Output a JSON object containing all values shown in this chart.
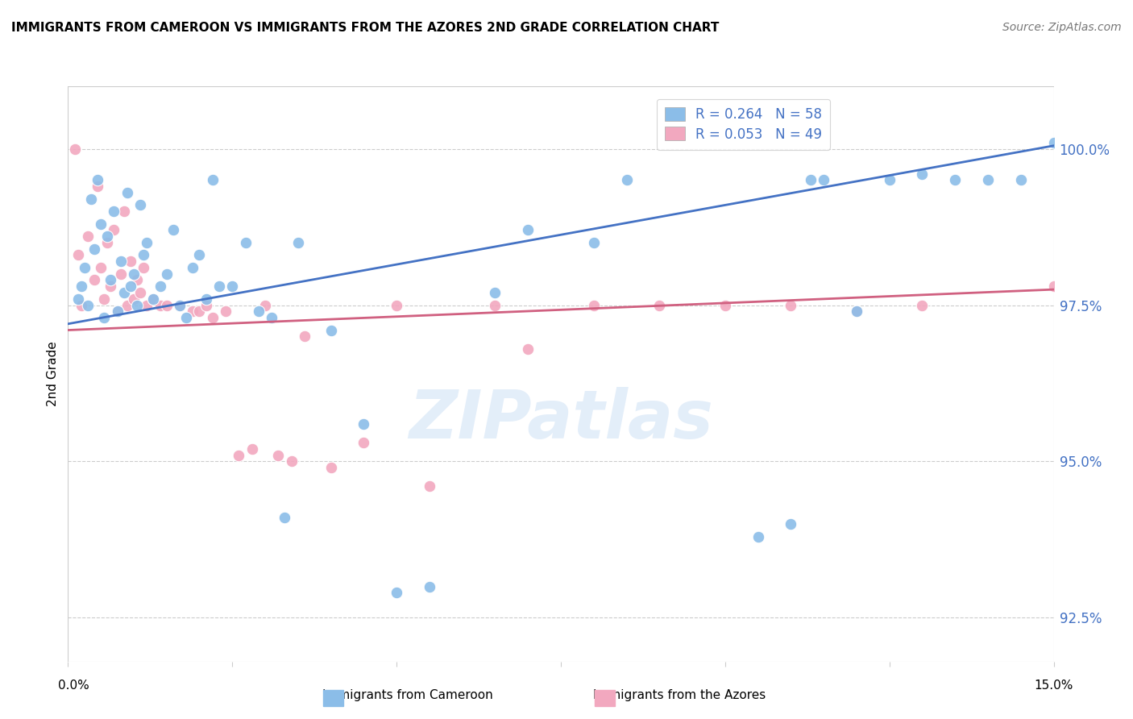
{
  "title": "IMMIGRANTS FROM CAMEROON VS IMMIGRANTS FROM THE AZORES 2ND GRADE CORRELATION CHART",
  "source": "Source: ZipAtlas.com",
  "ylabel": "2nd Grade",
  "ytick_values": [
    92.5,
    95.0,
    97.5,
    100.0
  ],
  "xlim": [
    0.0,
    15.0
  ],
  "ylim": [
    91.8,
    101.0
  ],
  "legend_r1": "R = 0.264",
  "legend_n1": "N = 58",
  "legend_r2": "R = 0.053",
  "legend_n2": "N = 49",
  "color_blue": "#8BBDE8",
  "color_pink": "#F2A8BF",
  "line_blue": "#4472C4",
  "line_pink": "#D06080",
  "watermark": "ZIPatlas",
  "blue_line_x0": 0.0,
  "blue_line_y0": 97.2,
  "blue_line_x1": 15.0,
  "blue_line_y1": 100.05,
  "pink_line_x0": 0.0,
  "pink_line_y0": 97.1,
  "pink_line_x1": 15.0,
  "pink_line_y1": 97.75,
  "blue_points_x": [
    0.15,
    0.2,
    0.25,
    0.3,
    0.35,
    0.4,
    0.45,
    0.5,
    0.55,
    0.6,
    0.65,
    0.7,
    0.75,
    0.8,
    0.85,
    0.9,
    0.95,
    1.0,
    1.05,
    1.1,
    1.15,
    1.2,
    1.3,
    1.4,
    1.5,
    1.6,
    1.7,
    1.8,
    1.9,
    2.0,
    2.1,
    2.2,
    2.3,
    2.5,
    2.7,
    2.9,
    3.1,
    3.3,
    3.5,
    4.0,
    4.5,
    5.0,
    5.5,
    6.5,
    7.0,
    8.0,
    8.5,
    10.5,
    11.0,
    11.3,
    11.5,
    12.0,
    12.5,
    13.0,
    13.5,
    14.0,
    14.5,
    15.0
  ],
  "blue_points_y": [
    97.6,
    97.8,
    98.1,
    97.5,
    99.2,
    98.4,
    99.5,
    98.8,
    97.3,
    98.6,
    97.9,
    99.0,
    97.4,
    98.2,
    97.7,
    99.3,
    97.8,
    98.0,
    97.5,
    99.1,
    98.3,
    98.5,
    97.6,
    97.8,
    98.0,
    98.7,
    97.5,
    97.3,
    98.1,
    98.3,
    97.6,
    99.5,
    97.8,
    97.8,
    98.5,
    97.4,
    97.3,
    94.1,
    98.5,
    97.1,
    95.6,
    92.9,
    93.0,
    97.7,
    98.7,
    98.5,
    99.5,
    93.8,
    94.0,
    99.5,
    99.5,
    97.4,
    99.5,
    99.6,
    99.5,
    99.5,
    99.5,
    100.1
  ],
  "pink_points_x": [
    0.1,
    0.15,
    0.2,
    0.3,
    0.4,
    0.45,
    0.5,
    0.55,
    0.6,
    0.65,
    0.7,
    0.75,
    0.8,
    0.85,
    0.9,
    0.95,
    1.0,
    1.05,
    1.1,
    1.15,
    1.2,
    1.3,
    1.4,
    1.5,
    1.7,
    1.9,
    2.0,
    2.1,
    2.2,
    2.4,
    2.6,
    2.8,
    3.0,
    3.2,
    3.4,
    3.6,
    4.0,
    4.5,
    5.0,
    5.5,
    6.5,
    7.0,
    8.0,
    9.0,
    10.0,
    11.0,
    12.0,
    13.0,
    15.0
  ],
  "pink_points_y": [
    100.0,
    98.3,
    97.5,
    98.6,
    97.9,
    99.4,
    98.1,
    97.6,
    98.5,
    97.8,
    98.7,
    97.4,
    98.0,
    99.0,
    97.5,
    98.2,
    97.6,
    97.9,
    97.7,
    98.1,
    97.5,
    97.6,
    97.5,
    97.5,
    97.5,
    97.4,
    97.4,
    97.5,
    97.3,
    97.4,
    95.1,
    95.2,
    97.5,
    95.1,
    95.0,
    97.0,
    94.9,
    95.3,
    97.5,
    94.6,
    97.5,
    96.8,
    97.5,
    97.5,
    97.5,
    97.5,
    97.4,
    97.5,
    97.8
  ]
}
